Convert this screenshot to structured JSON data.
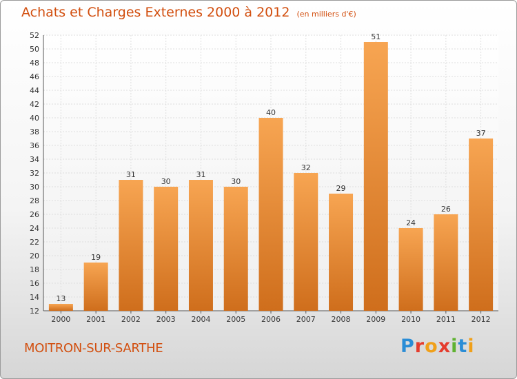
{
  "header": {
    "title": "Achats et Charges Externes 2000 à 2012",
    "unit": "(en milliers d'€)"
  },
  "footer": {
    "city": "MOITRON-SUR-SARTHE",
    "logo_letters": [
      "P",
      "r",
      "o",
      "x",
      "i",
      "t",
      "i"
    ]
  },
  "colors": {
    "accent": "#d24f0f",
    "bar_top": "#f7a552",
    "bar_bottom": "#cf6e1c"
  },
  "chart_data": {
    "type": "bar",
    "title": "Achats et Charges Externes 2000 à 2012",
    "subtitle": "(en milliers d'€)",
    "categories": [
      "2000",
      "2001",
      "2002",
      "2003",
      "2004",
      "2005",
      "2006",
      "2007",
      "2008",
      "2009",
      "2010",
      "2011",
      "2012"
    ],
    "values": [
      13,
      19,
      31,
      30,
      31,
      30,
      40,
      32,
      29,
      51,
      24,
      26,
      37
    ],
    "ylim": [
      12,
      52
    ],
    "yticks": [
      12,
      14,
      16,
      18,
      20,
      22,
      24,
      26,
      28,
      30,
      32,
      34,
      36,
      38,
      40,
      42,
      44,
      46,
      48,
      50,
      52
    ],
    "grid": true,
    "legend": "none"
  }
}
